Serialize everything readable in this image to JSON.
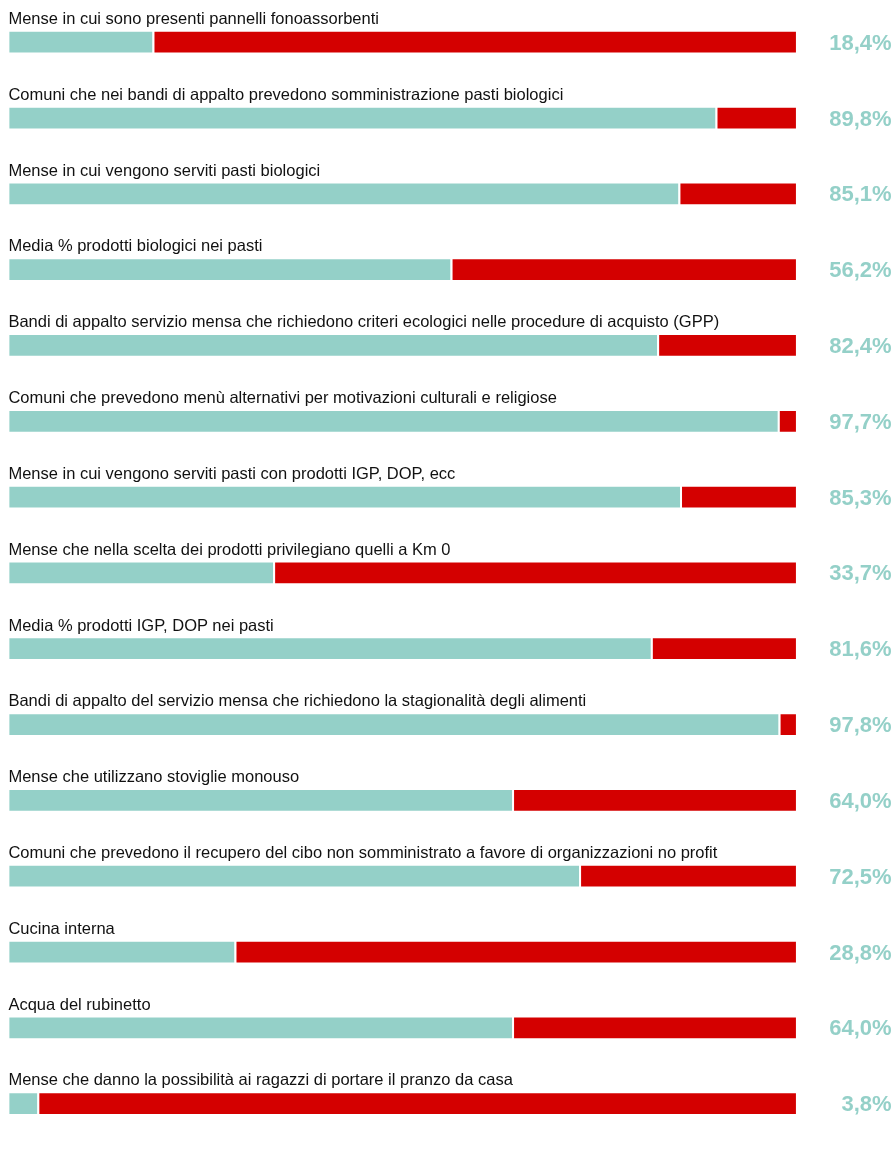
{
  "chart_data": {
    "type": "bar",
    "orientation": "horizontal",
    "stacked": true,
    "xlim": [
      0,
      100
    ],
    "tick_labels": false,
    "grid": false,
    "categories": [
      "Mense in cui sono presenti pannelli fonoassorbenti",
      "Comuni che nei bandi di appalto prevedono somministrazione pasti biologici",
      "Mense in cui vengono serviti pasti biologici",
      "Media % prodotti biologici nei pasti",
      "Bandi di appalto servizio mensa che richiedono criteri ecologici nelle procedure di acquisto (GPP)",
      "Comuni che prevedono menù alternativi per motivazioni culturali e religiose",
      "Mense in cui vengono serviti pasti con prodotti IGP, DOP, ecc",
      "Mense che nella scelta dei prodotti privilegiano quelli a Km 0",
      "Media % prodotti IGP, DOP nei pasti",
      "Bandi di appalto del servizio mensa che richiedono la stagionalità degli alimenti",
      "Mense che utilizzano stoviglie monouso",
      "Comuni che prevedono il recupero del cibo non somministrato a favore di organizzazioni no profit",
      "Cucina interna",
      "Acqua del rubinetto",
      "Mense che danno la possibilità ai ragazzi di portare il pranzo da casa"
    ],
    "series": [
      {
        "color": "#94d0c8",
        "values": [
          18.4,
          89.8,
          85.1,
          56.2,
          82.4,
          97.7,
          85.3,
          33.7,
          81.6,
          97.8,
          64.0,
          72.5,
          28.8,
          64.0,
          3.8
        ],
        "value_labels": [
          "18,4%",
          "89,8%",
          "85,1%",
          "56,2%",
          "82,4%",
          "97,7%",
          "85,3%",
          "33,7%",
          "81,6%",
          "97,8%",
          "64,0%",
          "72,5%",
          "28,8%",
          "64,0%",
          "3,8%"
        ]
      },
      {
        "color": "#d40000",
        "values": [
          81.6,
          10.2,
          14.9,
          43.8,
          17.6,
          2.3,
          14.7,
          66.3,
          18.4,
          2.2,
          36.0,
          27.5,
          71.2,
          36.0,
          96.2
        ]
      }
    ]
  }
}
